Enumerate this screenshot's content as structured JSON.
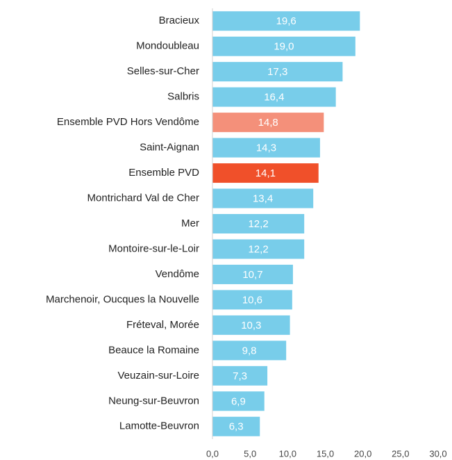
{
  "chart_data": {
    "type": "hbar",
    "categories": [
      "Bracieux",
      "Mondoubleau",
      "Selles-sur-Cher",
      "Salbris",
      "Ensemble PVD Hors Vendôme",
      "Saint-Aignan",
      "Ensemble PVD",
      "Montrichard Val de Cher",
      "Mer",
      "Montoire-sur-le-Loir",
      "Vendôme",
      "Marchenoir, Oucques la Nouvelle",
      "Fréteval, Morée",
      "Beauce la Romaine",
      "Veuzain-sur-Loire",
      "Neung-sur-Beuvron",
      "Lamotte-Beuvron"
    ],
    "values": [
      19.6,
      19.0,
      17.3,
      16.4,
      14.8,
      14.3,
      14.1,
      13.4,
      12.2,
      12.2,
      10.7,
      10.6,
      10.3,
      9.8,
      7.3,
      6.9,
      6.3
    ],
    "value_labels": [
      "19,6",
      "19,0",
      "17,3",
      "16,4",
      "14,8",
      "14,3",
      "14,1",
      "13,4",
      "12,2",
      "12,2",
      "10,7",
      "10,6",
      "10,3",
      "9,8",
      "7,3",
      "6,9",
      "6,3"
    ],
    "colors": [
      "#78cdea",
      "#78cdea",
      "#78cdea",
      "#78cdea",
      "#f4907a",
      "#78cdea",
      "#f0502a",
      "#78cdea",
      "#78cdea",
      "#78cdea",
      "#78cdea",
      "#78cdea",
      "#78cdea",
      "#78cdea",
      "#78cdea",
      "#78cdea",
      "#78cdea"
    ],
    "xlim": [
      0,
      30
    ],
    "xticks": [
      {
        "value": 0,
        "label": "0,0"
      },
      {
        "value": 5,
        "label": "5,0"
      },
      {
        "value": 10,
        "label": "10,0"
      },
      {
        "value": 15,
        "label": "15,0"
      },
      {
        "value": 20,
        "label": "20,0"
      },
      {
        "value": 25,
        "label": "25,0"
      },
      {
        "value": 30,
        "label": "30,0"
      }
    ],
    "grid": false
  }
}
